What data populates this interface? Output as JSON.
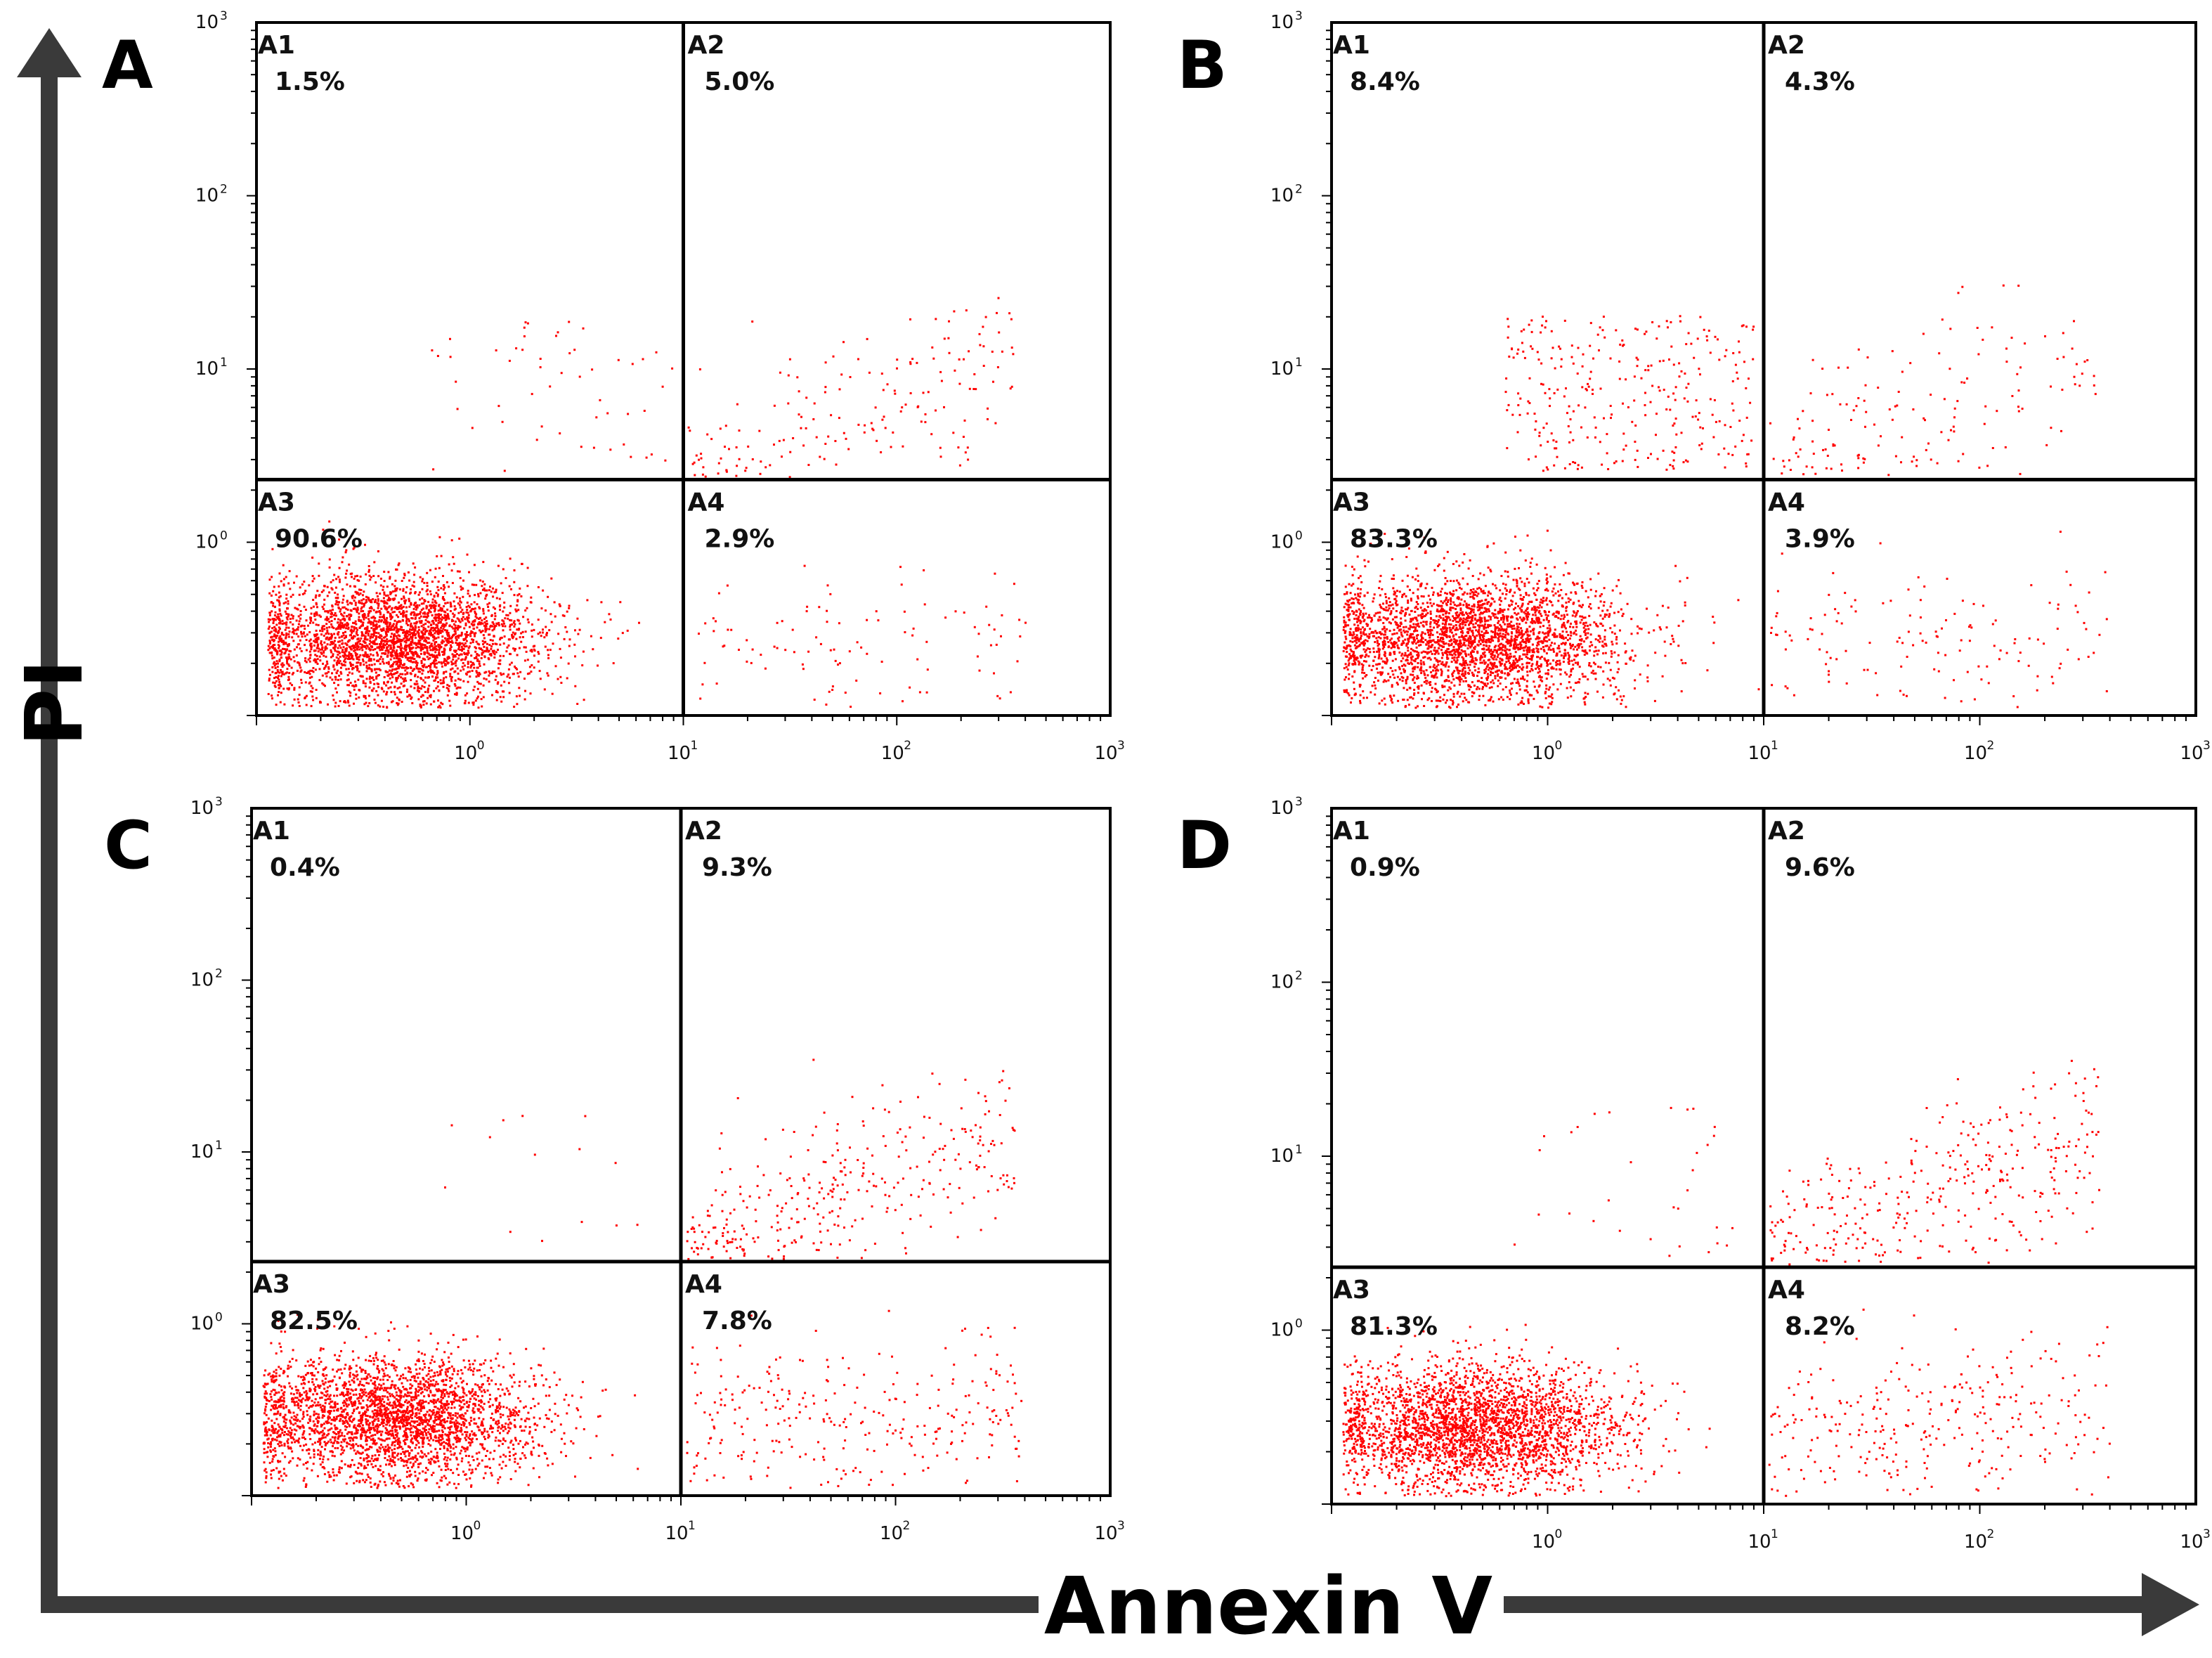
{
  "chart_data": {
    "type": "scatter",
    "x_axis": {
      "label": "Annexin V",
      "scale": "log",
      "ticks": [
        {
          "base": "10",
          "exp": "0"
        },
        {
          "base": "10",
          "exp": "1"
        },
        {
          "base": "10",
          "exp": "2"
        },
        {
          "base": "10",
          "exp": "3"
        }
      ]
    },
    "y_axis": {
      "label": "PI",
      "scale": "log",
      "ticks": [
        {
          "base": "10",
          "exp": "0"
        },
        {
          "base": "10",
          "exp": "1"
        },
        {
          "base": "10",
          "exp": "2"
        },
        {
          "base": "10",
          "exp": "3"
        }
      ]
    },
    "point_color": "#ff0000",
    "panels": [
      {
        "id": "A",
        "quadrants": [
          {
            "name": "A1",
            "percent": "1.5%"
          },
          {
            "name": "A2",
            "percent": "5.0%"
          },
          {
            "name": "A3",
            "percent": "90.6%"
          },
          {
            "name": "A4",
            "percent": "2.9%"
          }
        ],
        "gate": {
          "x": 10,
          "y": 2.3
        }
      },
      {
        "id": "B",
        "quadrants": [
          {
            "name": "A1",
            "percent": "8.4%"
          },
          {
            "name": "A2",
            "percent": "4.3%"
          },
          {
            "name": "A3",
            "percent": "83.3%"
          },
          {
            "name": "A4",
            "percent": "3.9%"
          }
        ],
        "gate": {
          "x": 10,
          "y": 2.3
        }
      },
      {
        "id": "C",
        "quadrants": [
          {
            "name": "A1",
            "percent": "0.4%"
          },
          {
            "name": "A2",
            "percent": "9.3%"
          },
          {
            "name": "A3",
            "percent": "82.5%"
          },
          {
            "name": "A4",
            "percent": "7.8%"
          }
        ],
        "gate": {
          "x": 10,
          "y": 2.3
        }
      },
      {
        "id": "D",
        "quadrants": [
          {
            "name": "A1",
            "percent": "0.9%"
          },
          {
            "name": "A2",
            "percent": "9.6%"
          },
          {
            "name": "A3",
            "percent": "81.3%"
          },
          {
            "name": "A4",
            "percent": "8.2%"
          }
        ],
        "gate": {
          "x": 10,
          "y": 2.3
        }
      }
    ]
  }
}
